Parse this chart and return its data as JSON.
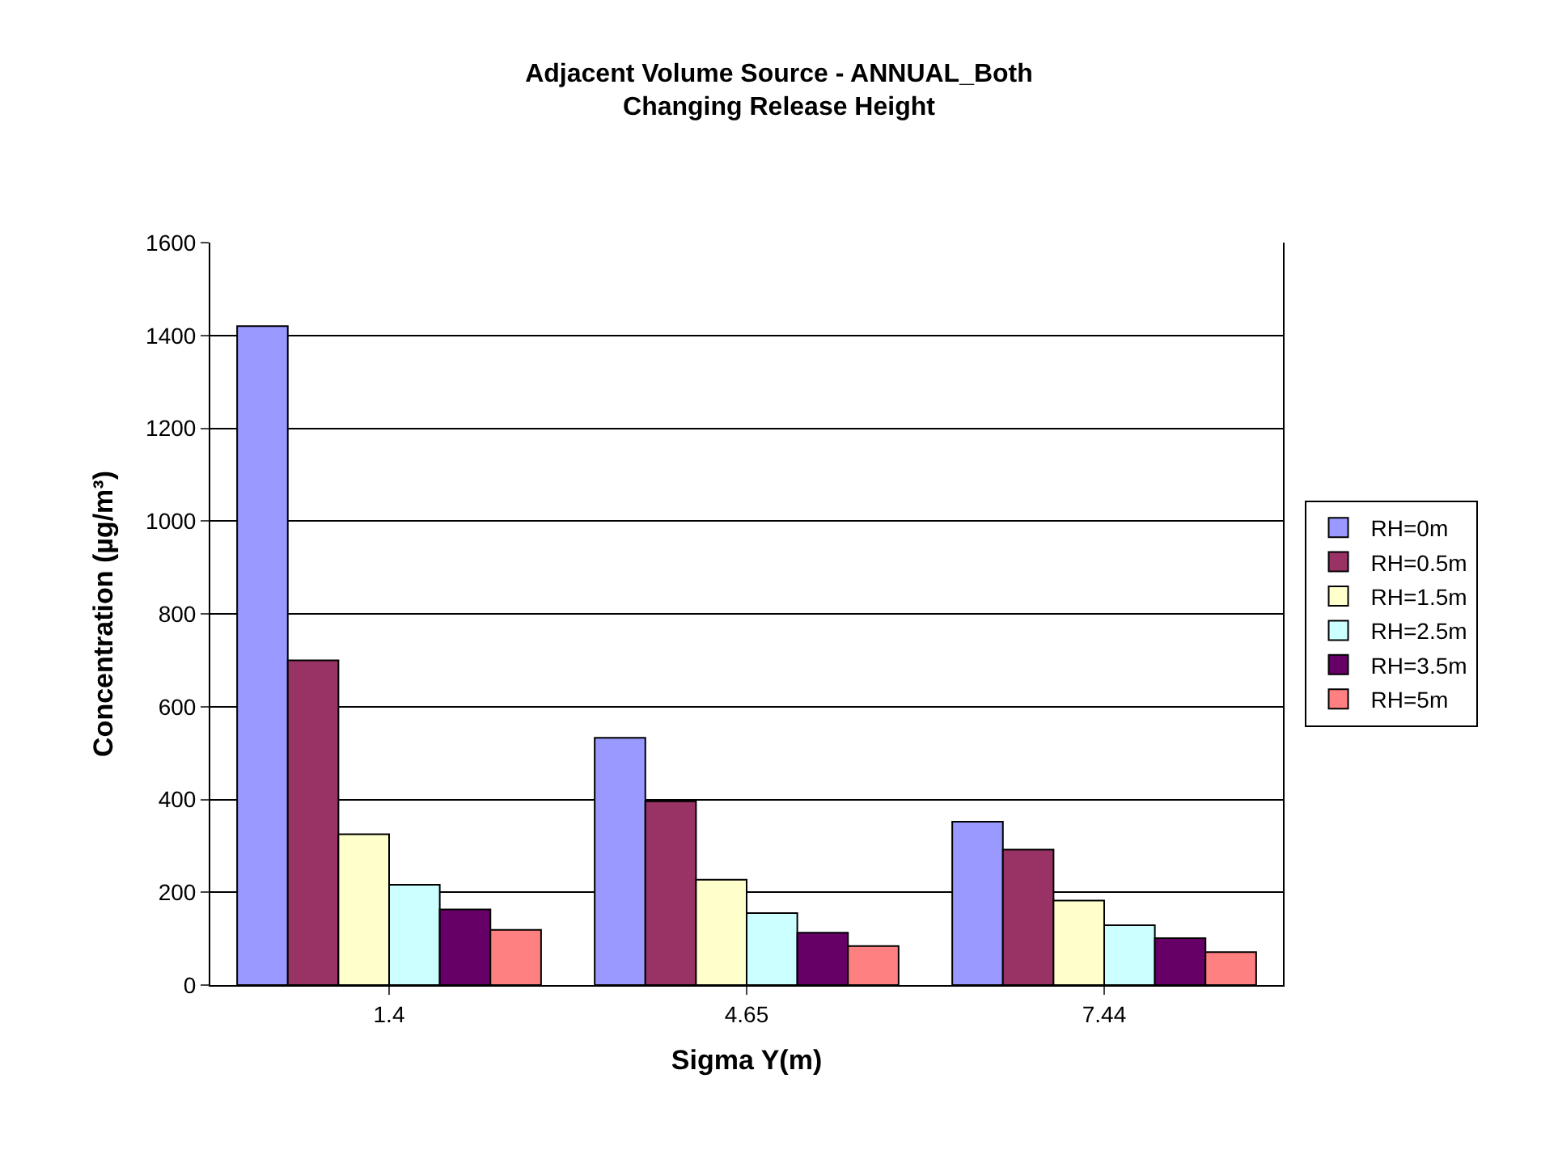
{
  "chart_data": {
    "type": "bar",
    "title": "Adjacent Volume Source - ANNUAL_Both",
    "subtitle": "Changing Release Height",
    "xlabel": "Sigma Y(m)",
    "ylabel": "Concentration (µg/m³)",
    "categories": [
      "1.4",
      "4.65",
      "7.44"
    ],
    "series": [
      {
        "name": "RH=0m",
        "color": "#9999ff",
        "values": [
          1420,
          533,
          352
        ]
      },
      {
        "name": "RH=0.5m",
        "color": "#993366",
        "values": [
          700,
          396,
          292
        ]
      },
      {
        "name": "RH=1.5m",
        "color": "#ffffcc",
        "values": [
          325,
          227,
          182
        ]
      },
      {
        "name": "RH=2.5m",
        "color": "#ccffff",
        "values": [
          216,
          155,
          129
        ]
      },
      {
        "name": "RH=3.5m",
        "color": "#660066",
        "values": [
          163,
          113,
          101
        ]
      },
      {
        "name": "RH=5m",
        "color": "#ff8080",
        "values": [
          119,
          84,
          71
        ]
      }
    ],
    "ylim": [
      0,
      1600
    ],
    "yticks": [
      0,
      200,
      400,
      600,
      800,
      1000,
      1200,
      1400,
      1600
    ],
    "grid": "y",
    "legend": "right"
  }
}
